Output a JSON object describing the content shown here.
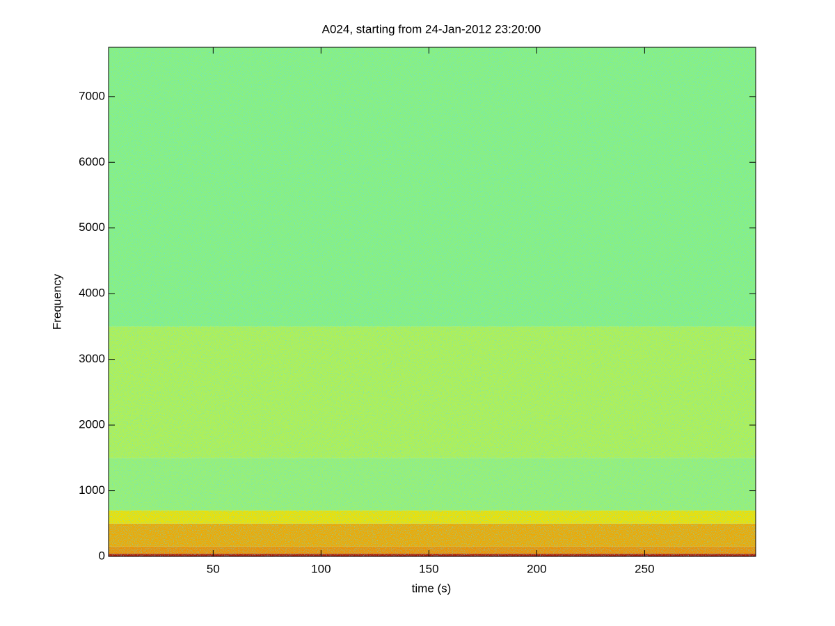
{
  "chart_data": {
    "type": "spectrogram",
    "title": "A024, starting from 24-Jan-2012 23:20:00",
    "xlabel": "time (s)",
    "ylabel": "Frequency",
    "xlim": [
      1.5,
      301.5
    ],
    "xticks": [
      50,
      100,
      150,
      200,
      250
    ],
    "ylim": [
      0,
      7750
    ],
    "yticks": [
      0,
      1000,
      2000,
      3000,
      4000,
      5000,
      6000,
      7000
    ],
    "bands": [
      {
        "from": 0,
        "to": 40,
        "color": "#b01800"
      },
      {
        "from": 40,
        "to": 150,
        "color": "#f09000"
      },
      {
        "from": 150,
        "to": 500,
        "color": "#f0a800"
      },
      {
        "from": 500,
        "to": 700,
        "color": "#f0e000"
      },
      {
        "from": 700,
        "to": 1500,
        "color": "#9cf070"
      },
      {
        "from": 1500,
        "to": 3500,
        "color": "#b4f050"
      },
      {
        "from": 3500,
        "to": 7750,
        "color": "#8cf07c"
      }
    ]
  }
}
